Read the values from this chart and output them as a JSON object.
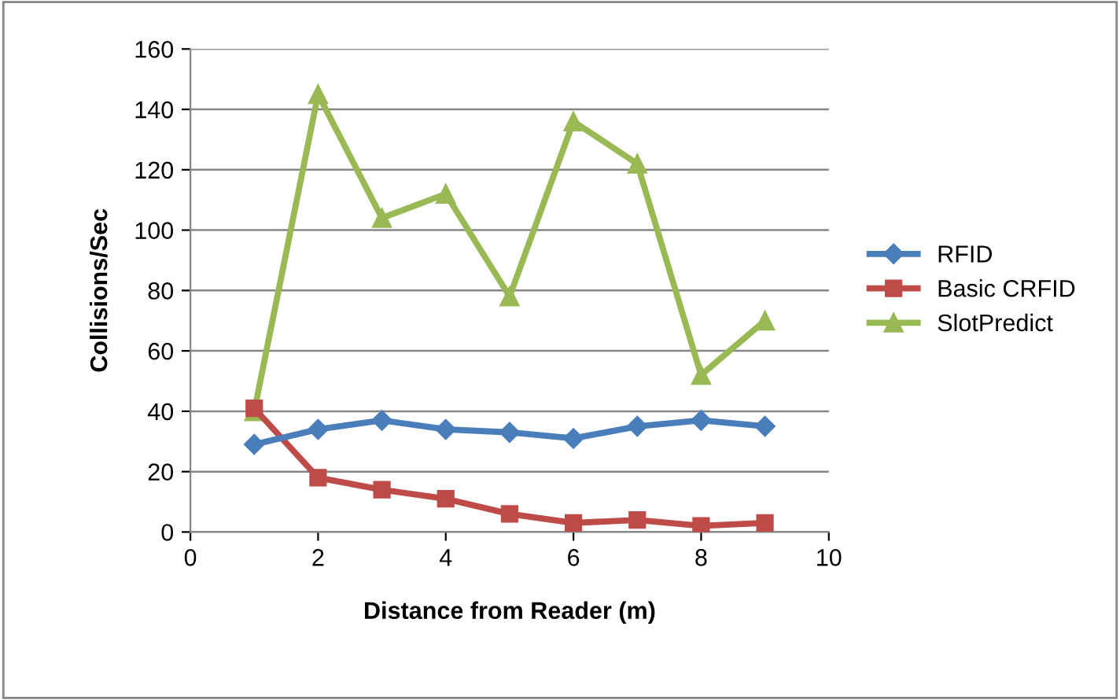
{
  "chart_data": {
    "type": "line",
    "xlabel": "Distance from Reader (m)",
    "ylabel": "Collisions/Sec",
    "x": [
      1,
      2,
      3,
      4,
      5,
      6,
      7,
      8,
      9
    ],
    "series": [
      {
        "name": "RFID",
        "color": "#4a7ebb",
        "marker": "diamond",
        "values": [
          29,
          34,
          37,
          34,
          33,
          31,
          35,
          37,
          35
        ]
      },
      {
        "name": "Basic CRFID",
        "color": "#be4b48",
        "marker": "square",
        "values": [
          41,
          18,
          14,
          11,
          6,
          3,
          4,
          2,
          3
        ]
      },
      {
        "name": "SlotPredict",
        "color": "#98b954",
        "marker": "triangle",
        "values": [
          40,
          145,
          104,
          112,
          78,
          136,
          122,
          52,
          70
        ]
      }
    ],
    "xlim": [
      0,
      10
    ],
    "xticks": [
      0,
      2,
      4,
      6,
      8,
      10
    ],
    "ylim": [
      0,
      160
    ],
    "yticks": [
      0,
      20,
      40,
      60,
      80,
      100,
      120,
      140,
      160
    ],
    "grid": "y",
    "legend": "right",
    "line_style": "solid"
  }
}
